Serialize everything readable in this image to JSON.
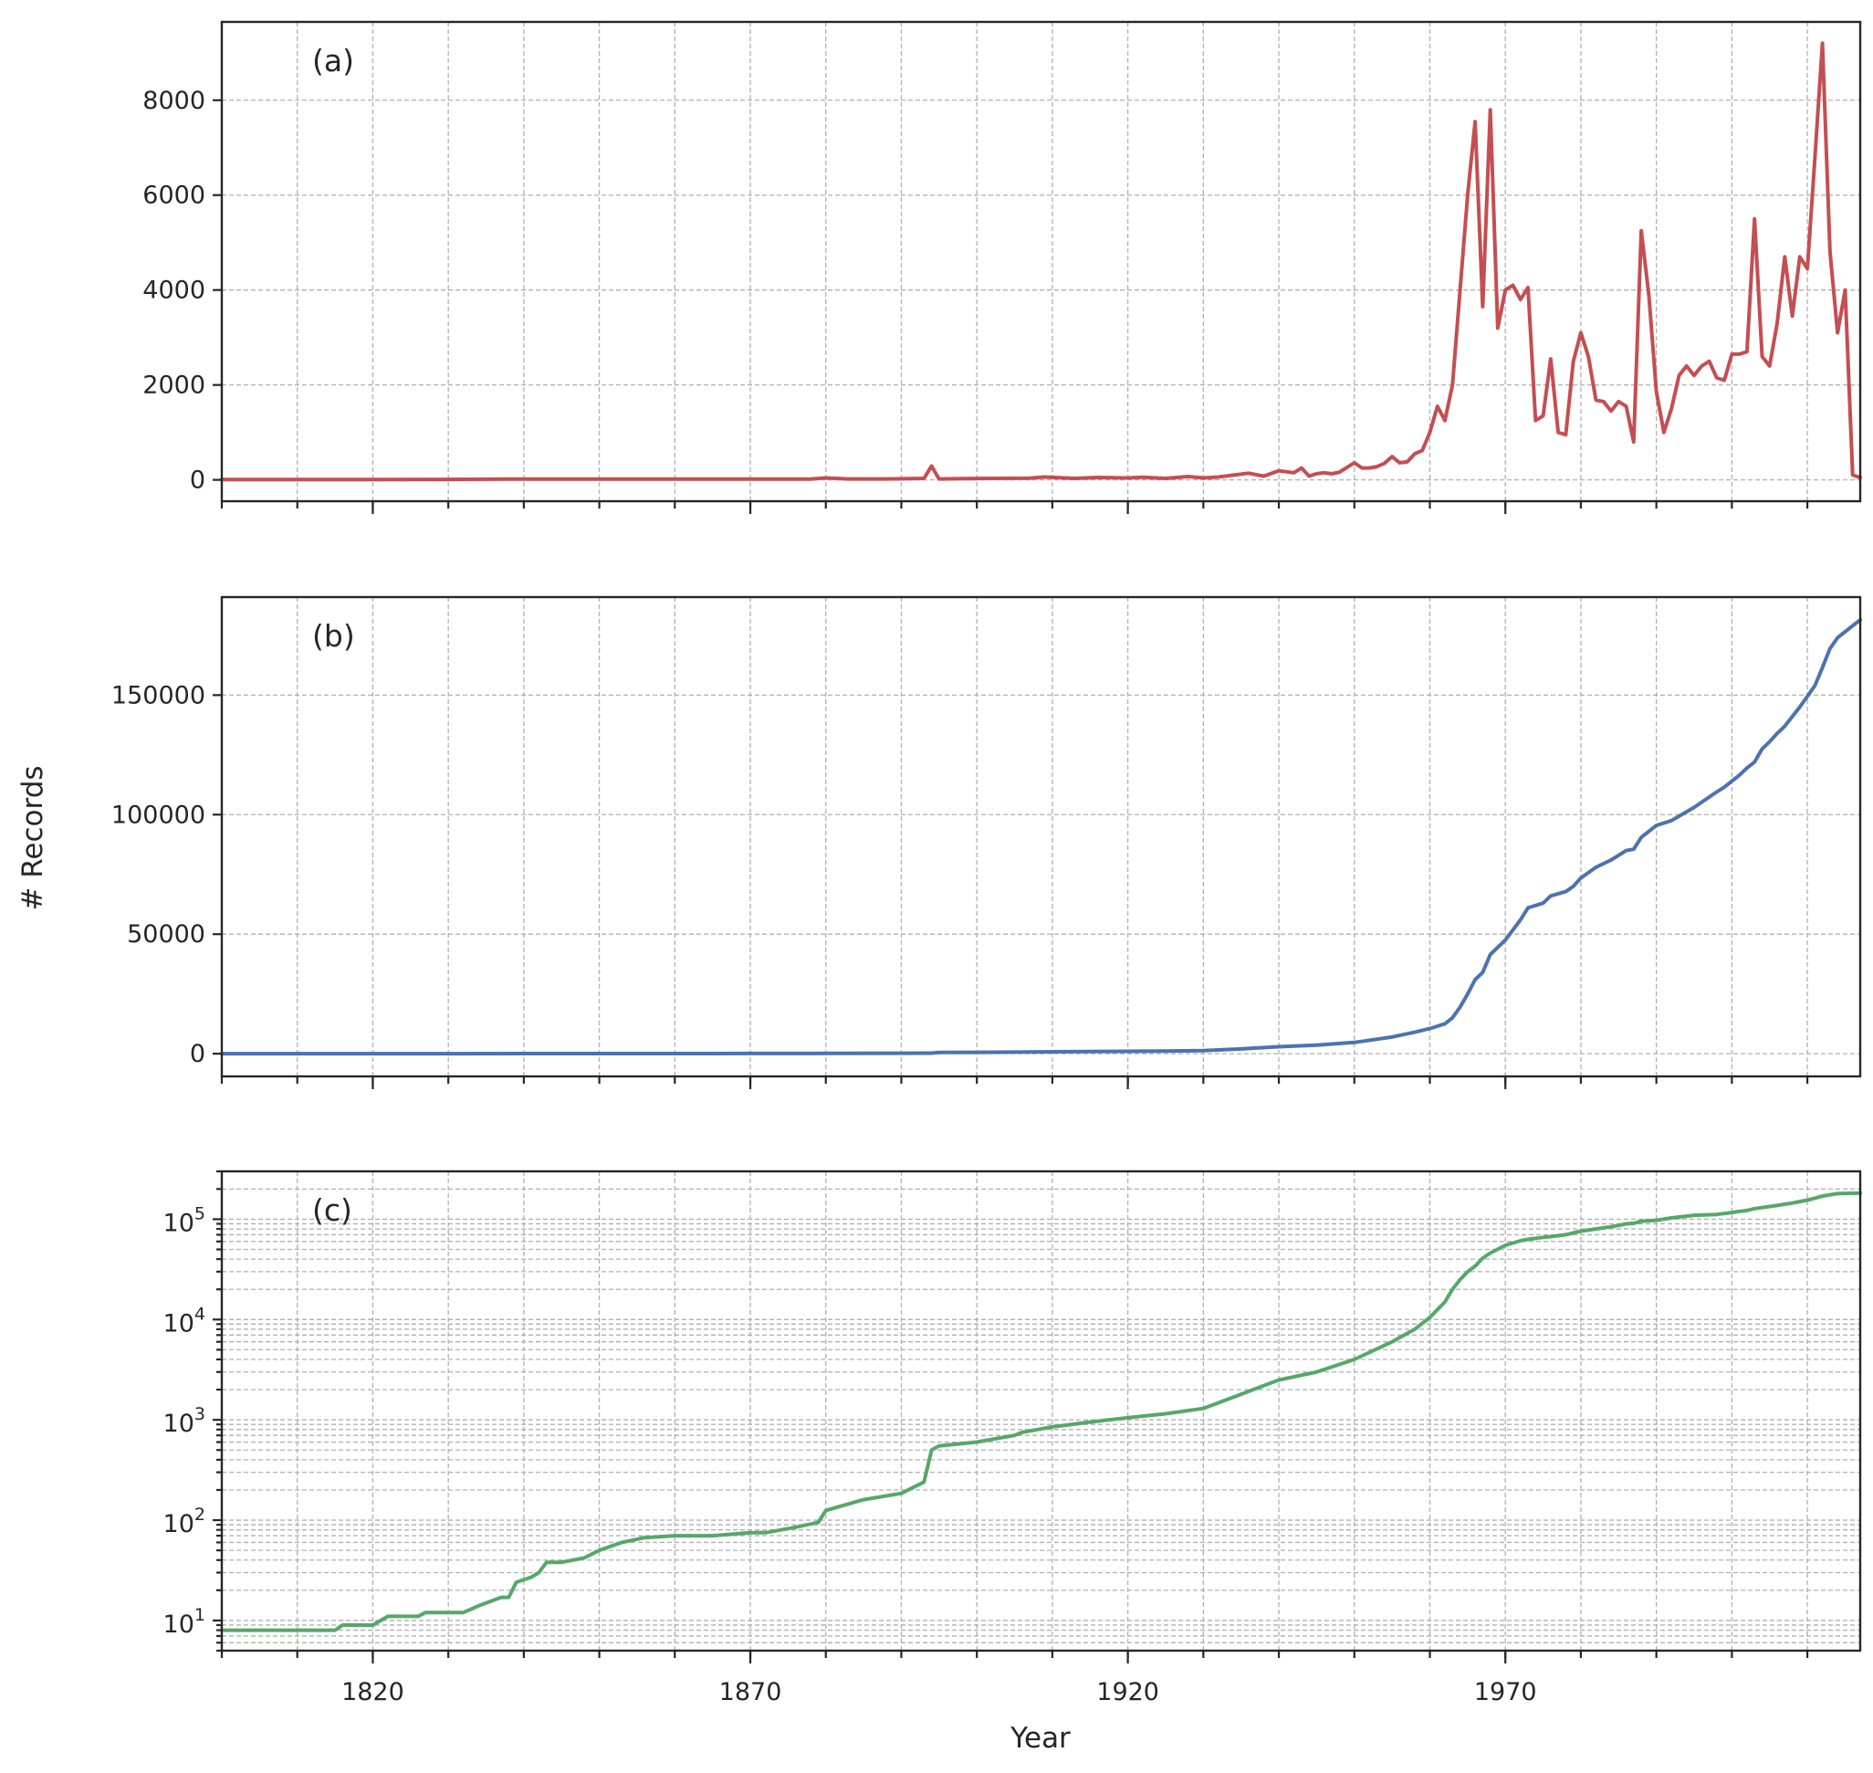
{
  "chart_data": {
    "type": "line",
    "shared_x": true,
    "xlabel": "Year",
    "ylabel": "# Records",
    "xlim": [
      1800,
      2017
    ],
    "x_ticks": [
      1820,
      1870,
      1920,
      1970
    ],
    "grid": true,
    "panels": [
      {
        "label": "(a)",
        "scale": "linear",
        "ylim": [
          -450,
          9650
        ],
        "y_ticks": [
          0,
          2000,
          4000,
          6000,
          8000
        ],
        "y_tick_labels": [
          "0",
          "2000",
          "4000",
          "6000",
          "8000"
        ],
        "color": "#c44e52",
        "series": [
          {
            "x": [
              1800,
              1810,
              1820,
              1830,
              1838,
              1845,
              1850,
              1855,
              1860,
              1870,
              1878,
              1880,
              1883,
              1888,
              1893,
              1894,
              1895,
              1898,
              1902,
              1907,
              1909,
              1913,
              1916,
              1920,
              1922,
              1925,
              1928,
              1930,
              1932,
              1934,
              1936,
              1938,
              1940,
              1942,
              1943,
              1944,
              1945,
              1946,
              1947,
              1948,
              1950,
              1951,
              1952,
              1953,
              1954,
              1955,
              1956,
              1957,
              1958,
              1959,
              1960,
              1961,
              1962,
              1963,
              1964,
              1965,
              1966,
              1967,
              1968,
              1969,
              1970,
              1971,
              1972,
              1973,
              1974,
              1975,
              1976,
              1977,
              1978,
              1979,
              1980,
              1981,
              1982,
              1983,
              1984,
              1985,
              1986,
              1987,
              1988,
              1989,
              1990,
              1991,
              1992,
              1993,
              1994,
              1995,
              1996,
              1997,
              1998,
              1999,
              2000,
              2001,
              2002,
              2003,
              2004,
              2005,
              2006,
              2007,
              2008,
              2009,
              2010,
              2011,
              2012,
              2013,
              2014,
              2015,
              2016,
              2017
            ],
            "y": [
              5,
              6,
              8,
              10,
              15,
              15,
              18,
              18,
              15,
              15,
              18,
              40,
              20,
              20,
              30,
              290,
              20,
              25,
              30,
              35,
              60,
              30,
              50,
              40,
              55,
              30,
              70,
              40,
              60,
              100,
              140,
              80,
              190,
              150,
              250,
              80,
              130,
              150,
              130,
              160,
              360,
              250,
              250,
              280,
              350,
              490,
              360,
              380,
              550,
              620,
              1000,
              1550,
              1250,
              2000,
              4000,
              6000,
              7550,
              3650,
              7800,
              3200,
              4000,
              4100,
              3800,
              4050,
              1250,
              1350,
              2550,
              1000,
              950,
              2500,
              3100,
              2600,
              1680,
              1650,
              1450,
              1650,
              1550,
              800,
              5250,
              3900,
              1850,
              1000,
              1500,
              2200,
              2400,
              2200,
              2400,
              2500,
              2150,
              2100,
              2650,
              2650,
              2700,
              5500,
              2600,
              2400,
              3300,
              4700,
              3450,
              4700,
              4450,
              6800,
              9200,
              4800,
              3100,
              4000,
              100,
              50
            ]
          }
        ]
      },
      {
        "label": "(b)",
        "scale": "linear",
        "ylim": [
          -9500,
          191000
        ],
        "y_ticks": [
          0,
          50000,
          100000,
          150000
        ],
        "y_tick_labels": [
          "0",
          "50000",
          "100000",
          "150000"
        ],
        "color": "#4c72b0",
        "series": [
          {
            "x": [
              1800,
              1810,
              1820,
              1830,
              1840,
              1850,
              1860,
              1870,
              1880,
              1890,
              1894,
              1895,
              1900,
              1910,
              1920,
              1925,
              1930,
              1935,
              1940,
              1945,
              1950,
              1955,
              1958,
              1960,
              1962,
              1963,
              1964,
              1965,
              1966,
              1967,
              1968,
              1970,
              1972,
              1973,
              1975,
              1976,
              1978,
              1979,
              1980,
              1982,
              1984,
              1985,
              1986,
              1987,
              1988,
              1990,
              1992,
              1995,
              1998,
              1999,
              2000,
              2001,
              2002,
              2003,
              2004,
              2005,
              2006,
              2007,
              2008,
              2009,
              2010,
              2011,
              2012,
              2013,
              2014,
              2017
            ],
            "y": [
              8,
              8,
              10,
              12,
              30,
              60,
              65,
              75,
              130,
              185,
              240,
              530,
              600,
              800,
              1000,
              1100,
              1300,
              2000,
              2900,
              3600,
              4700,
              7000,
              9000,
              10500,
              12500,
              15000,
              19500,
              25000,
              31000,
              34000,
              41500,
              47500,
              56000,
              61000,
              63000,
              66000,
              67800,
              70000,
              73500,
              78000,
              81000,
              83000,
              85000,
              85500,
              90500,
              95500,
              97500,
              103000,
              109500,
              111500,
              114000,
              116500,
              119500,
              122000,
              127500,
              130500,
              134000,
              137000,
              141000,
              145000,
              149500,
              154000,
              161500,
              169500,
              174000,
              181500
            ]
          }
        ]
      },
      {
        "label": "(c)",
        "scale": "log",
        "ylim": [
          5,
          300000
        ],
        "y_ticks": [
          10,
          100,
          1000,
          10000,
          100000
        ],
        "y_tick_labels": [
          {
            "base": "10",
            "exp": "1"
          },
          {
            "base": "10",
            "exp": "2"
          },
          {
            "base": "10",
            "exp": "3"
          },
          {
            "base": "10",
            "exp": "4"
          },
          {
            "base": "10",
            "exp": "5"
          }
        ],
        "color": "#55a868",
        "series": [
          {
            "x": [
              1800,
              1815,
              1816,
              1820,
              1822,
              1826,
              1827,
              1832,
              1834,
              1837,
              1838,
              1839,
              1841,
              1842,
              1843,
              1845,
              1848,
              1850,
              1853,
              1856,
              1860,
              1865,
              1870,
              1872,
              1876,
              1879,
              1880,
              1885,
              1890,
              1893,
              1894,
              1895,
              1900,
              1905,
              1906,
              1910,
              1915,
              1920,
              1925,
              1930,
              1935,
              1940,
              1945,
              1950,
              1955,
              1958,
              1960,
              1962,
              1963,
              1964,
              1965,
              1966,
              1967,
              1968,
              1970,
              1972,
              1973,
              1975,
              1976,
              1978,
              1979,
              1980,
              1982,
              1984,
              1985,
              1986,
              1987,
              1988,
              1990,
              1992,
              1995,
              1998,
              1999,
              2000,
              2001,
              2002,
              2003,
              2004,
              2005,
              2006,
              2007,
              2008,
              2009,
              2010,
              2011,
              2012,
              2013,
              2014,
              2017
            ],
            "y": [
              8,
              8,
              9,
              9,
              11,
              11,
              12,
              12,
              14,
              17,
              17,
              24,
              27,
              30,
              38,
              38,
              42,
              50,
              60,
              67,
              70,
              70,
              75,
              75,
              85,
              95,
              125,
              160,
              185,
              240,
              500,
              550,
              600,
              700,
              750,
              850,
              950,
              1050,
              1150,
              1300,
              1800,
              2500,
              3000,
              4000,
              6000,
              8000,
              10500,
              15000,
              20000,
              25000,
              30000,
              34000,
              41000,
              46000,
              55000,
              61000,
              63000,
              66000,
              67000,
              70000,
              73000,
              76000,
              80000,
              84000,
              87000,
              90000,
              91000,
              95500,
              97500,
              103000,
              109500,
              111500,
              114000,
              116500,
              119500,
              122000,
              127500,
              130500,
              134000,
              137000,
              141000,
              145000,
              150000,
              155000,
              162000,
              170000,
              175000,
              180000,
              182000
            ]
          }
        ]
      }
    ]
  }
}
